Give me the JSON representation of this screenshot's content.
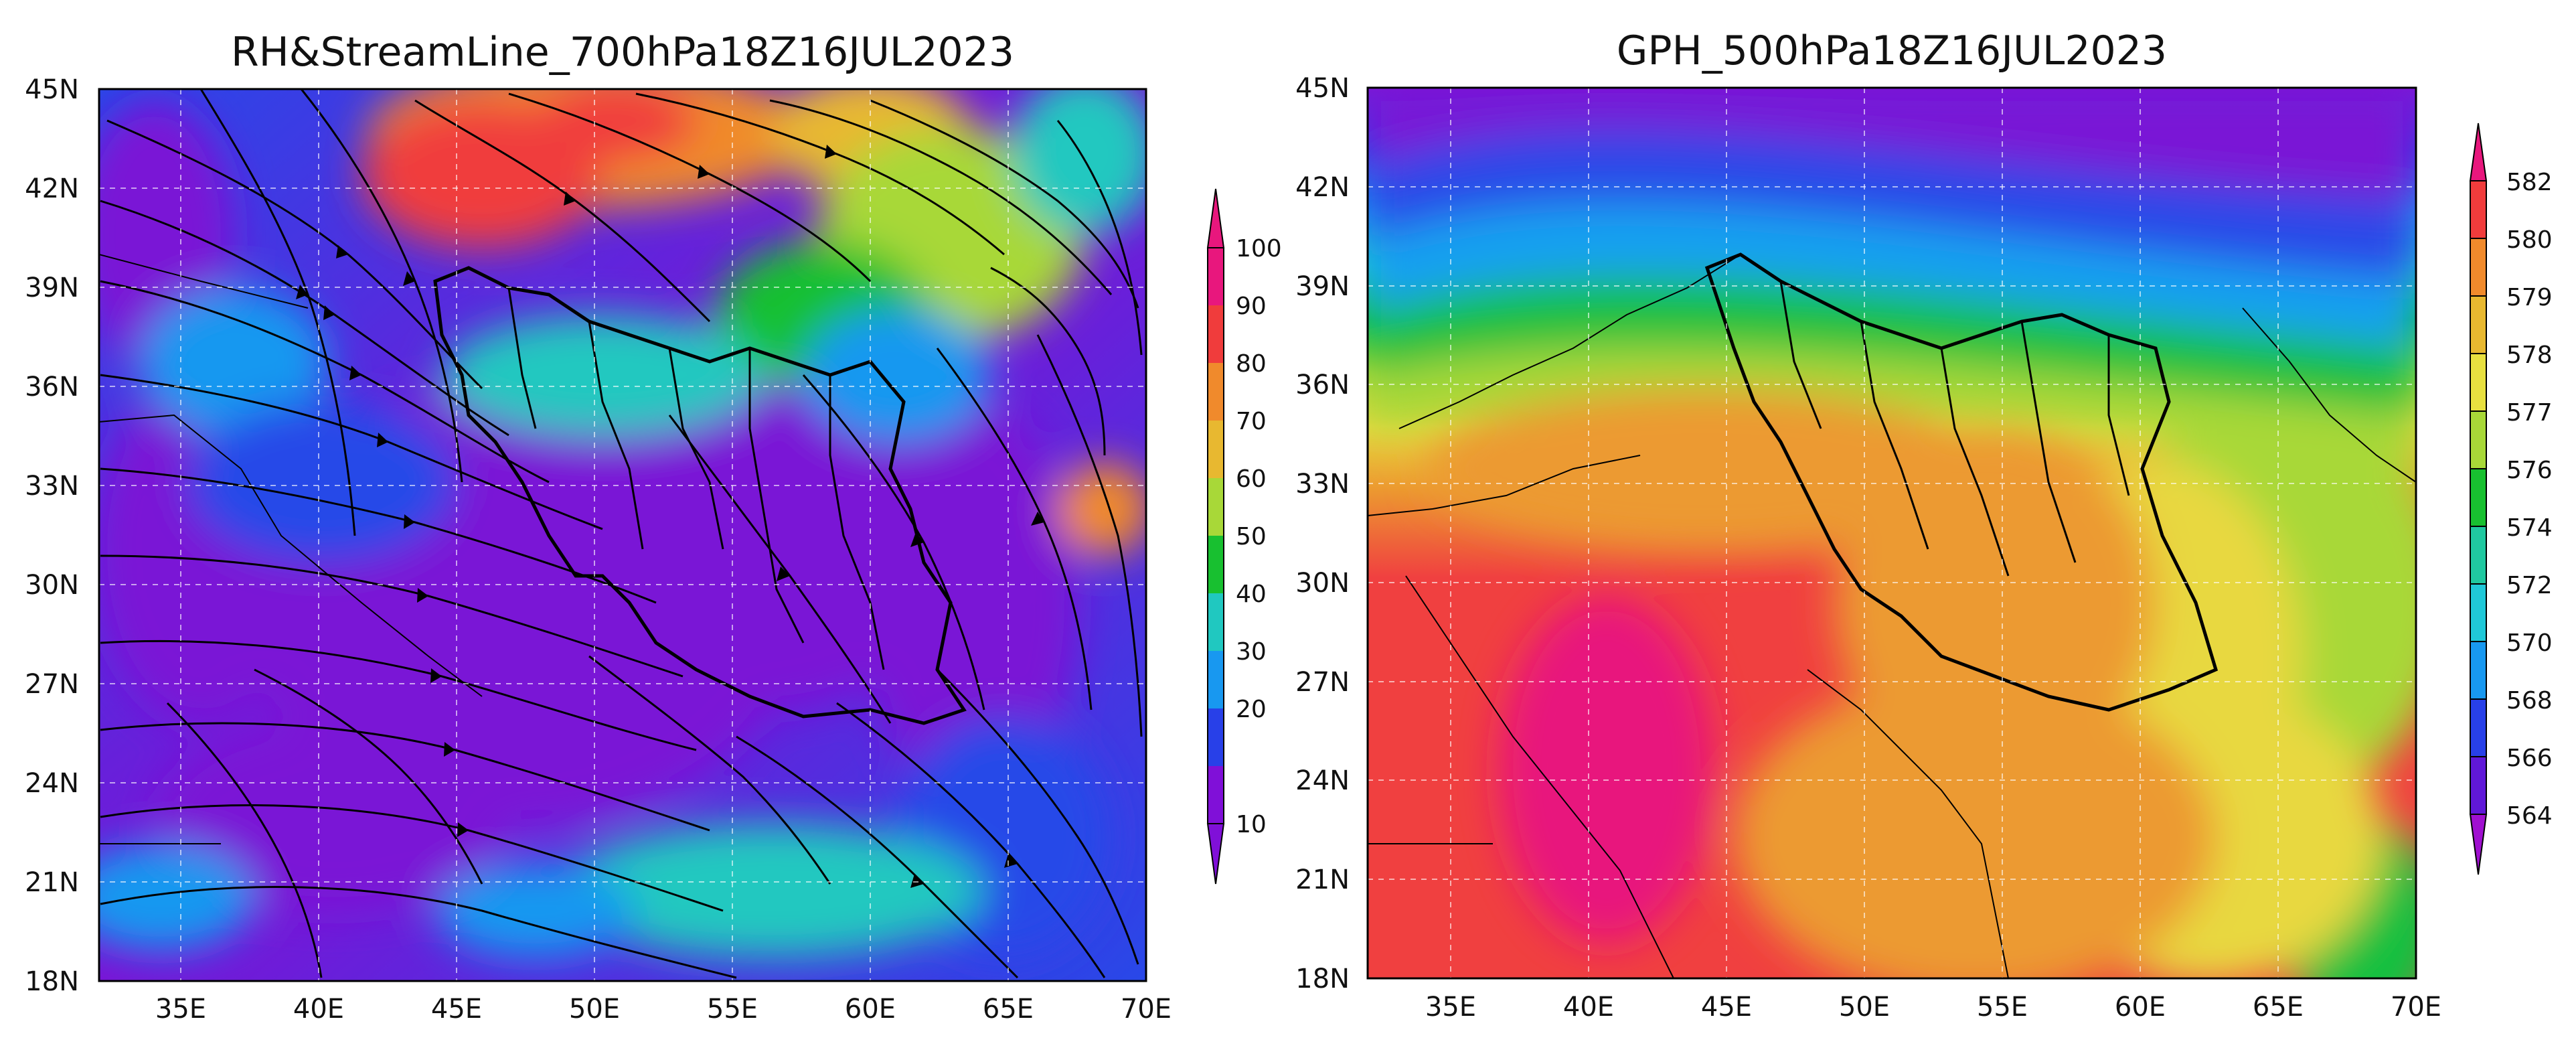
{
  "panels": [
    {
      "title": "RH&StreamLine_700hPa18Z16JUL2023",
      "x_ticks": [
        "35E",
        "40E",
        "45E",
        "50E",
        "55E",
        "60E",
        "65E",
        "70E"
      ],
      "y_ticks": [
        "45N",
        "42N",
        "39N",
        "36N",
        "33N",
        "30N",
        "27N",
        "24N",
        "21N",
        "18N"
      ],
      "colorbar_ticks": [
        "100",
        "90",
        "80",
        "70",
        "60",
        "50",
        "40",
        "30",
        "20",
        "10"
      ],
      "colorbar_colors": [
        "#e8177d",
        "#f03c3c",
        "#f08a2c",
        "#e8b830",
        "#a8d838",
        "#18c030",
        "#20c8c0",
        "#1898f0",
        "#2840e8",
        "#8010d8",
        "#8010d8"
      ],
      "field": "relative humidity with streamlines"
    },
    {
      "title": "GPH_500hPa18Z16JUL2023",
      "x_ticks": [
        "35E",
        "40E",
        "45E",
        "50E",
        "55E",
        "60E",
        "65E",
        "70E"
      ],
      "y_ticks": [
        "45N",
        "42N",
        "39N",
        "36N",
        "33N",
        "30N",
        "27N",
        "24N",
        "21N",
        "18N"
      ],
      "colorbar_ticks": [
        "582",
        "580",
        "579",
        "578",
        "577",
        "576",
        "574",
        "572",
        "570",
        "568",
        "566",
        "564"
      ],
      "colorbar_colors": [
        "#e8177d",
        "#f03c3c",
        "#f08a2c",
        "#e8b830",
        "#e8e040",
        "#a8d838",
        "#18c030",
        "#20c8a0",
        "#20c8d8",
        "#1898f0",
        "#2840e8",
        "#6018d8",
        "#a010d0"
      ],
      "field": "geopotential height"
    }
  ]
}
